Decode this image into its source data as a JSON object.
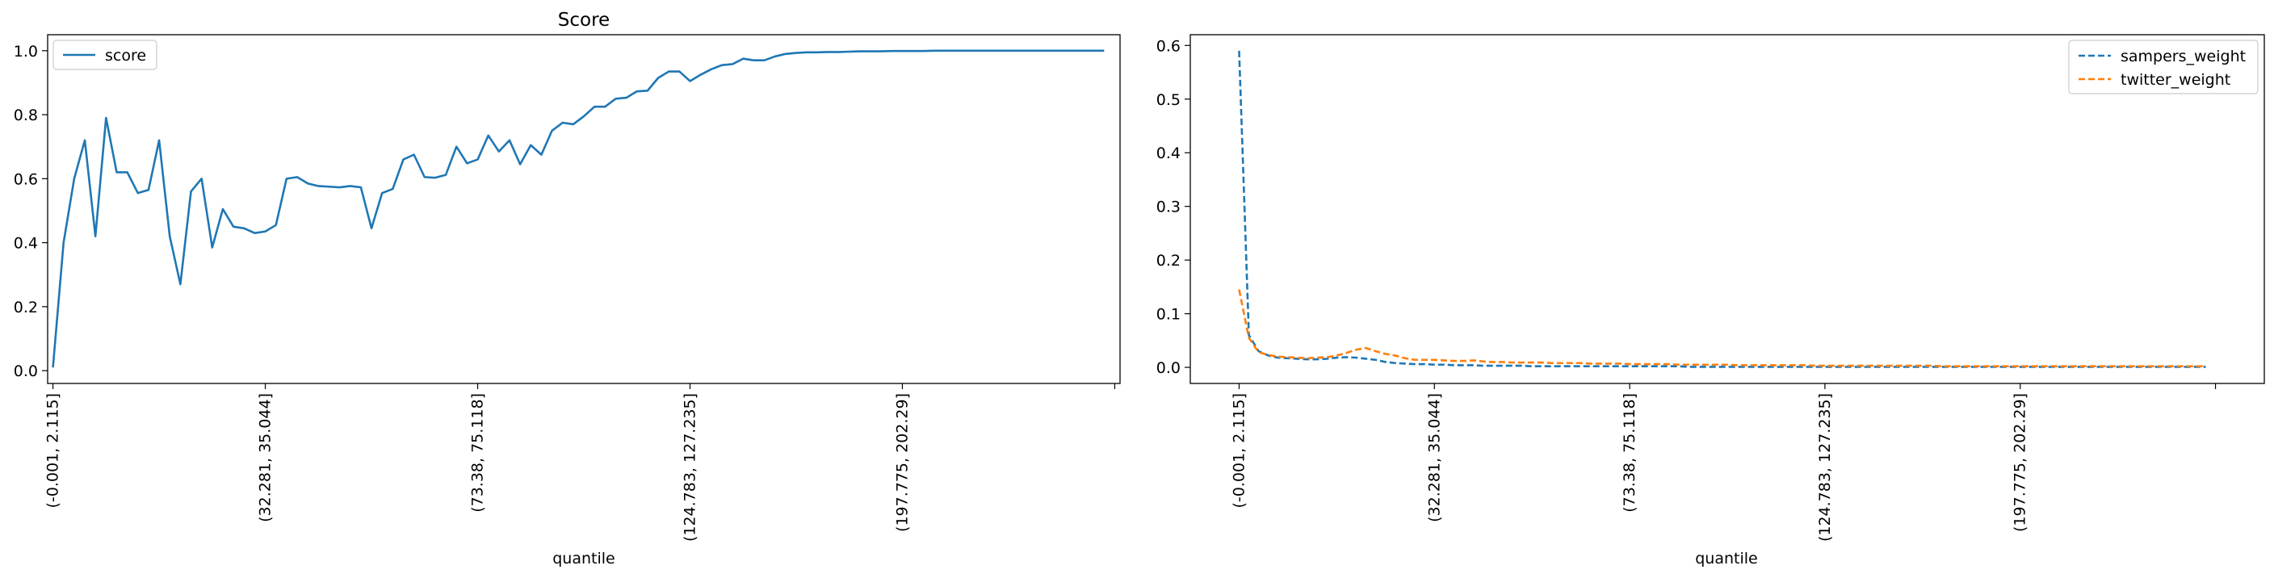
{
  "chart_data": [
    {
      "type": "line",
      "title": "Score",
      "xlabel": "quantile",
      "ylabel": "",
      "ylim": [
        -0.04,
        1.05
      ],
      "yticks": [
        0.0,
        0.2,
        0.4,
        0.6,
        0.8,
        1.0
      ],
      "ytick_labels": [
        "0.0",
        "0.2",
        "0.4",
        "0.6",
        "0.8",
        "1.0"
      ],
      "x_count": 100,
      "x_range": [
        -0.5,
        100.5
      ],
      "xtick_positions": [
        0,
        20,
        40,
        60,
        80,
        100
      ],
      "xtick_labels": [
        "(-0.001, 2.115]",
        "(32.281, 35.044]",
        "(73.38, 75.118]",
        "(124.783, 127.235]",
        "(197.775, 202.29]",
        ""
      ],
      "legend": "upper left",
      "series": [
        {
          "name": "score",
          "color": "#1f77b4",
          "style": "solid",
          "values": [
            0.01,
            0.4,
            0.6,
            0.72,
            0.42,
            0.79,
            0.62,
            0.62,
            0.555,
            0.565,
            0.72,
            0.42,
            0.27,
            0.56,
            0.6,
            0.385,
            0.505,
            0.45,
            0.445,
            0.43,
            0.435,
            0.455,
            0.6,
            0.605,
            0.585,
            0.577,
            0.575,
            0.573,
            0.577,
            0.573,
            0.445,
            0.555,
            0.568,
            0.66,
            0.675,
            0.605,
            0.603,
            0.612,
            0.7,
            0.648,
            0.66,
            0.735,
            0.685,
            0.72,
            0.645,
            0.705,
            0.675,
            0.75,
            0.775,
            0.77,
            0.795,
            0.825,
            0.825,
            0.85,
            0.853,
            0.873,
            0.875,
            0.915,
            0.935,
            0.935,
            0.905,
            0.925,
            0.942,
            0.955,
            0.958,
            0.975,
            0.97,
            0.97,
            0.982,
            0.99,
            0.993,
            0.995,
            0.995,
            0.996,
            0.996,
            0.997,
            0.998,
            0.998,
            0.998,
            0.999,
            0.999,
            0.999,
            0.999,
            1.0,
            1.0,
            1.0,
            1.0,
            1.0,
            1.0,
            1.0,
            1.0,
            1.0,
            1.0,
            1.0,
            1.0,
            1.0,
            1.0,
            1.0,
            1.0,
            1.0
          ]
        }
      ]
    },
    {
      "type": "line",
      "title": "",
      "xlabel": "quantile",
      "ylabel": "",
      "ylim": [
        -0.03,
        0.62
      ],
      "yticks": [
        0.0,
        0.1,
        0.2,
        0.3,
        0.4,
        0.5,
        0.6
      ],
      "ytick_labels": [
        "0.0",
        "0.1",
        "0.2",
        "0.3",
        "0.4",
        "0.5",
        "0.6"
      ],
      "x_count": 100,
      "x_range": [
        -5,
        105
      ],
      "xtick_positions": [
        0,
        20,
        40,
        60,
        80,
        100
      ],
      "xtick_labels": [
        "(-0.001, 2.115]",
        "(32.281, 35.044]",
        "(73.38, 75.118]",
        "(124.783, 127.235]",
        "(197.775, 202.29]",
        ""
      ],
      "legend": "upper right",
      "series": [
        {
          "name": "sampers_weight",
          "color": "#1f77b4",
          "style": "dashed",
          "values": [
            0.59,
            0.06,
            0.03,
            0.022,
            0.018,
            0.017,
            0.016,
            0.015,
            0.015,
            0.016,
            0.018,
            0.019,
            0.018,
            0.016,
            0.014,
            0.01,
            0.008,
            0.007,
            0.006,
            0.006,
            0.005,
            0.005,
            0.004,
            0.004,
            0.004,
            0.003,
            0.003,
            0.003,
            0.003,
            0.003,
            0.002,
            0.002,
            0.002,
            0.002,
            0.002,
            0.002,
            0.002,
            0.002,
            0.002,
            0.002,
            0.002,
            0.002,
            0.002,
            0.002,
            0.002,
            0.002,
            0.001,
            0.001,
            0.001,
            0.001,
            0.001,
            0.001,
            0.001,
            0.001,
            0.001,
            0.001,
            0.001,
            0.001,
            0.001,
            0.001,
            0.001,
            0.001,
            0.001,
            0.001,
            0.001,
            0.001,
            0.001,
            0.001,
            0.001,
            0.001,
            0.001,
            0.001,
            0.001,
            0.001,
            0.001,
            0.001,
            0.001,
            0.001,
            0.001,
            0.001,
            0.001,
            0.001,
            0.001,
            0.001,
            0.001,
            0.001,
            0.001,
            0.001,
            0.001,
            0.001,
            0.001,
            0.001,
            0.001,
            0.001,
            0.001,
            0.001,
            0.001,
            0.001,
            0.001,
            0.001
          ]
        },
        {
          "name": "twitter_weight",
          "color": "#ff7f0e",
          "style": "dashed",
          "values": [
            0.145,
            0.055,
            0.028,
            0.023,
            0.02,
            0.019,
            0.018,
            0.017,
            0.018,
            0.019,
            0.022,
            0.027,
            0.033,
            0.036,
            0.03,
            0.025,
            0.022,
            0.017,
            0.014,
            0.014,
            0.014,
            0.013,
            0.012,
            0.012,
            0.013,
            0.011,
            0.01,
            0.01,
            0.009,
            0.009,
            0.009,
            0.009,
            0.008,
            0.008,
            0.008,
            0.008,
            0.007,
            0.007,
            0.007,
            0.007,
            0.006,
            0.006,
            0.006,
            0.006,
            0.006,
            0.005,
            0.005,
            0.005,
            0.005,
            0.005,
            0.005,
            0.004,
            0.004,
            0.004,
            0.004,
            0.004,
            0.004,
            0.004,
            0.004,
            0.003,
            0.003,
            0.003,
            0.003,
            0.003,
            0.003,
            0.003,
            0.003,
            0.003,
            0.003,
            0.003,
            0.003,
            0.003,
            0.002,
            0.002,
            0.002,
            0.002,
            0.002,
            0.002,
            0.002,
            0.002,
            0.002,
            0.002,
            0.002,
            0.002,
            0.002,
            0.002,
            0.002,
            0.002,
            0.002,
            0.002,
            0.002,
            0.002,
            0.002,
            0.002,
            0.002,
            0.002,
            0.002,
            0.002,
            0.002,
            0.002
          ]
        }
      ]
    }
  ]
}
